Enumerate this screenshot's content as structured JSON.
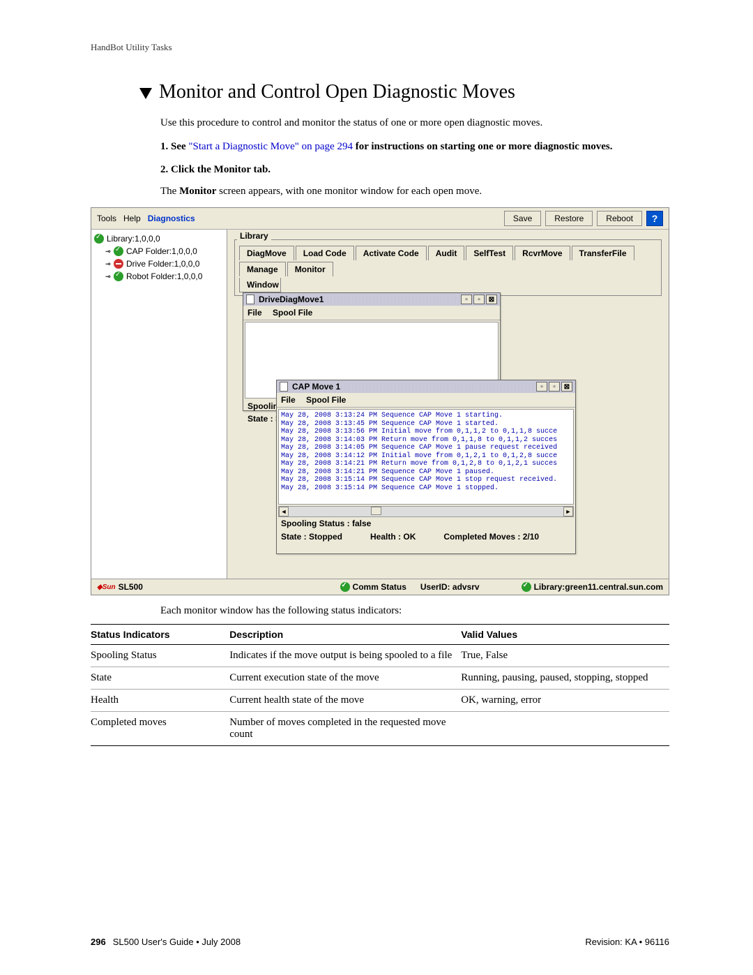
{
  "header": "HandBot Utility Tasks",
  "title": "Monitor and Control Open Diagnostic Moves",
  "intro": "Use this procedure to control and monitor the status of one or more open diagnostic moves.",
  "step1_prefix": "1. See ",
  "step1_link": "\"Start a Diagnostic Move\" on page 294",
  "step1_suffix": " for instructions on starting one or more diagnostic moves.",
  "step2": "2. Click the Monitor tab.",
  "step2_desc_a": "The ",
  "step2_desc_b": "Monitor",
  "step2_desc_c": " screen appears, with one monitor window for each open move.",
  "menubar": {
    "tools": "Tools",
    "help": "Help",
    "diag": "Diagnostics"
  },
  "toolbar": {
    "save": "Save",
    "restore": "Restore",
    "reboot": "Reboot",
    "help": "?"
  },
  "tree": {
    "root": "Library:1,0,0,0",
    "cap": "CAP Folder:1,0,0,0",
    "drive": "Drive Folder:1,0,0,0",
    "robot": "Robot Folder:1,0,0,0"
  },
  "library_label": "Library",
  "tabs": {
    "diagmove": "DiagMove",
    "loadcode": "Load Code",
    "activate": "Activate Code",
    "audit": "Audit",
    "selftest": "SelfTest",
    "rcvr": "RcvrMove",
    "transfer": "TransferFile",
    "manage": "Manage",
    "monitor": "Monitor",
    "window": "Window"
  },
  "win1": {
    "title": "DriveDiagMove1",
    "menu_file": "File",
    "menu_spool": "Spool File",
    "spooling": "Spooling S",
    "state": "State : Sto"
  },
  "win2": {
    "title": "CAP Move 1",
    "menu_file": "File",
    "menu_spool": "Spool File",
    "log": [
      "May 28, 2008 3:13:24 PM Sequence CAP Move 1 starting.",
      "May 28, 2008 3:13:45 PM Sequence CAP Move 1 started.",
      "May 28, 2008 3:13:56 PM Initial move from 0,1,1,2 to 0,1,1,8 succe",
      "May 28, 2008 3:14:03 PM Return move from 0,1,1,8 to 0,1,1,2 succes",
      "May 28, 2008 3:14:05 PM Sequence CAP Move 1 pause request received",
      "May 28, 2008 3:14:12 PM Initial move from 0,1,2,1 to 0,1,2,8 succe",
      "May 28, 2008 3:14:21 PM Return move from 0,1,2,8 to 0,1,2,1 succes",
      "May 28, 2008 3:14:21 PM Sequence CAP Move 1 paused.",
      "May 28, 2008 3:15:14 PM Sequence CAP Move 1 stop request received.",
      "May 28, 2008 3:15:14 PM Sequence CAP Move 1 stopped."
    ],
    "spool_status": "Spooling Status : false",
    "state": "State : Stopped",
    "health": "Health : OK",
    "completed": "Completed Moves : 2/10"
  },
  "footer": {
    "product": "SL500",
    "comm": "Comm Status",
    "userid": "UserID: advsrv",
    "library": "Library:green11.central.sun.com"
  },
  "table_caption": "Each monitor window has the following status indicators:",
  "table": {
    "h1": "Status Indicators",
    "h2": "Description",
    "h3": "Valid Values",
    "rows": [
      {
        "c1": "Spooling Status",
        "c2": "Indicates if the move output is being spooled to a file",
        "c3": "True, False"
      },
      {
        "c1": "State",
        "c2": "Current execution state of the move",
        "c3": "Running, pausing, paused, stopping, stopped"
      },
      {
        "c1": "Health",
        "c2": "Current health state of the move",
        "c3": "OK, warning, error"
      },
      {
        "c1": "Completed moves",
        "c2": "Number of moves completed in the requested move count",
        "c3": ""
      }
    ]
  },
  "pagefoot": {
    "num": "296",
    "left": "SL500 User's Guide • July 2008",
    "right": "Revision: KA • 96116"
  }
}
